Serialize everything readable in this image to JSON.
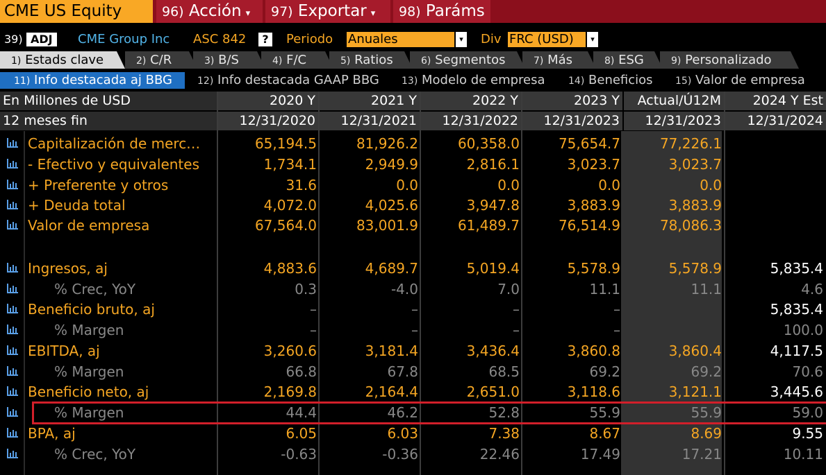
{
  "header": {
    "ticker": "CME US Equity",
    "menus": [
      {
        "num": "96)",
        "label": "Acción",
        "caret": "▾"
      },
      {
        "num": "97)",
        "label": "Exportar",
        "caret": "▾"
      },
      {
        "num": "98)",
        "label": "Paráms",
        "caret": ""
      }
    ]
  },
  "toolbar": {
    "num": "39)",
    "adj": "ADJ",
    "company": "CME Group Inc",
    "asc": "ASC 842",
    "help": "?",
    "period_label": "Periodo",
    "period_value": "Anuales",
    "div_label": "Div",
    "div_value": "FRC (USD)",
    "dropdown_arrow": "▾"
  },
  "tabs_primary": [
    {
      "num": "1)",
      "label": "Estads clave"
    },
    {
      "num": "2)",
      "label": "C/R"
    },
    {
      "num": "3)",
      "label": "B/S"
    },
    {
      "num": "4)",
      "label": "F/C"
    },
    {
      "num": "5)",
      "label": "Ratios"
    },
    {
      "num": "6)",
      "label": "Segmentos"
    },
    {
      "num": "7)",
      "label": "Más"
    },
    {
      "num": "8)",
      "label": "ESG"
    },
    {
      "num": "9)",
      "label": "Personalizado"
    }
  ],
  "tabs_secondary": [
    {
      "num": "11)",
      "label": "Info destacada aj BBG"
    },
    {
      "num": "12)",
      "label": "Info destacada GAAP BBG"
    },
    {
      "num": "13)",
      "label": "Modelo de empresa"
    },
    {
      "num": "14)",
      "label": "Beneficios"
    },
    {
      "num": "15)",
      "label": "Valor de empresa"
    }
  ],
  "table": {
    "corner1": "En Millones de USD",
    "corner2": "12 meses fin",
    "columns": [
      {
        "period": "2020 Y",
        "date": "12/31/2020"
      },
      {
        "period": "2021 Y",
        "date": "12/31/2021"
      },
      {
        "period": "2022 Y",
        "date": "12/31/2022"
      },
      {
        "period": "2023 Y",
        "date": "12/31/2023"
      },
      {
        "period": "Actual/Ú12M",
        "date": "12/31/2023"
      },
      {
        "period": "2024 Y Est",
        "date": "12/31/2024"
      }
    ],
    "rows": [
      {
        "label": "Capitalización de merc…",
        "type": "main",
        "values": [
          "65,194.5",
          "81,926.2",
          "60,358.0",
          "75,654.7",
          "77,226.1",
          ""
        ]
      },
      {
        "label": "- Efectivo y equivalentes",
        "type": "mainwhite",
        "values": [
          "1,734.1",
          "2,949.9",
          "2,816.1",
          "3,023.7",
          "3,023.7",
          ""
        ]
      },
      {
        "label": "+ Preferente y otros",
        "type": "mainwhite",
        "values": [
          "31.6",
          "0.0",
          "0.0",
          "0.0",
          "0.0",
          ""
        ]
      },
      {
        "label": "+ Deuda total",
        "type": "mainwhite",
        "values": [
          "4,072.0",
          "4,025.6",
          "3,947.8",
          "3,883.9",
          "3,883.9",
          ""
        ]
      },
      {
        "label": "Valor de empresa",
        "type": "main",
        "values": [
          "67,564.0",
          "83,001.9",
          "61,489.7",
          "76,514.9",
          "78,086.3",
          ""
        ]
      },
      {
        "label": "Ingresos, aj",
        "type": "main",
        "values": [
          "4,883.6",
          "4,689.7",
          "5,019.4",
          "5,578.9",
          "5,578.9",
          "5,835.4"
        ]
      },
      {
        "label": "% Crec, YoY",
        "type": "sub",
        "values": [
          "0.3",
          "-4.0",
          "7.0",
          "11.1",
          "11.1",
          "4.6"
        ]
      },
      {
        "label": "Beneficio bruto, aj",
        "type": "main",
        "values": [
          "–",
          "–",
          "–",
          "–",
          "",
          "5,835.4"
        ]
      },
      {
        "label": "% Margen",
        "type": "sub",
        "values": [
          "–",
          "–",
          "–",
          "–",
          "",
          "100.0"
        ]
      },
      {
        "label": "EBITDA, aj",
        "type": "main",
        "values": [
          "3,260.6",
          "3,181.4",
          "3,436.4",
          "3,860.8",
          "3,860.4",
          "4,117.5"
        ]
      },
      {
        "label": "% Margen",
        "type": "sub",
        "values": [
          "66.8",
          "67.8",
          "68.5",
          "69.2",
          "69.2",
          "70.6"
        ]
      },
      {
        "label": "Beneficio neto, aj",
        "type": "main",
        "values": [
          "2,169.8",
          "2,164.4",
          "2,651.0",
          "3,118.6",
          "3,121.1",
          "3,445.6"
        ]
      },
      {
        "label": "% Margen",
        "type": "sub",
        "values": [
          "44.4",
          "46.2",
          "52.8",
          "55.9",
          "55.9",
          "59.0"
        ]
      },
      {
        "label": "BPA, aj",
        "type": "main",
        "values": [
          "6.05",
          "6.03",
          "7.38",
          "8.67",
          "8.69",
          "9.55"
        ]
      },
      {
        "label": "% Crec, YoY",
        "type": "sub",
        "values": [
          "-0.63",
          "-0.36",
          "22.46",
          "17.49",
          "17.21",
          "10.11"
        ]
      }
    ]
  },
  "colors": {
    "orange": "#f5a623",
    "highlight": "#d21f2a",
    "active_tab": "#1f6fc2"
  }
}
